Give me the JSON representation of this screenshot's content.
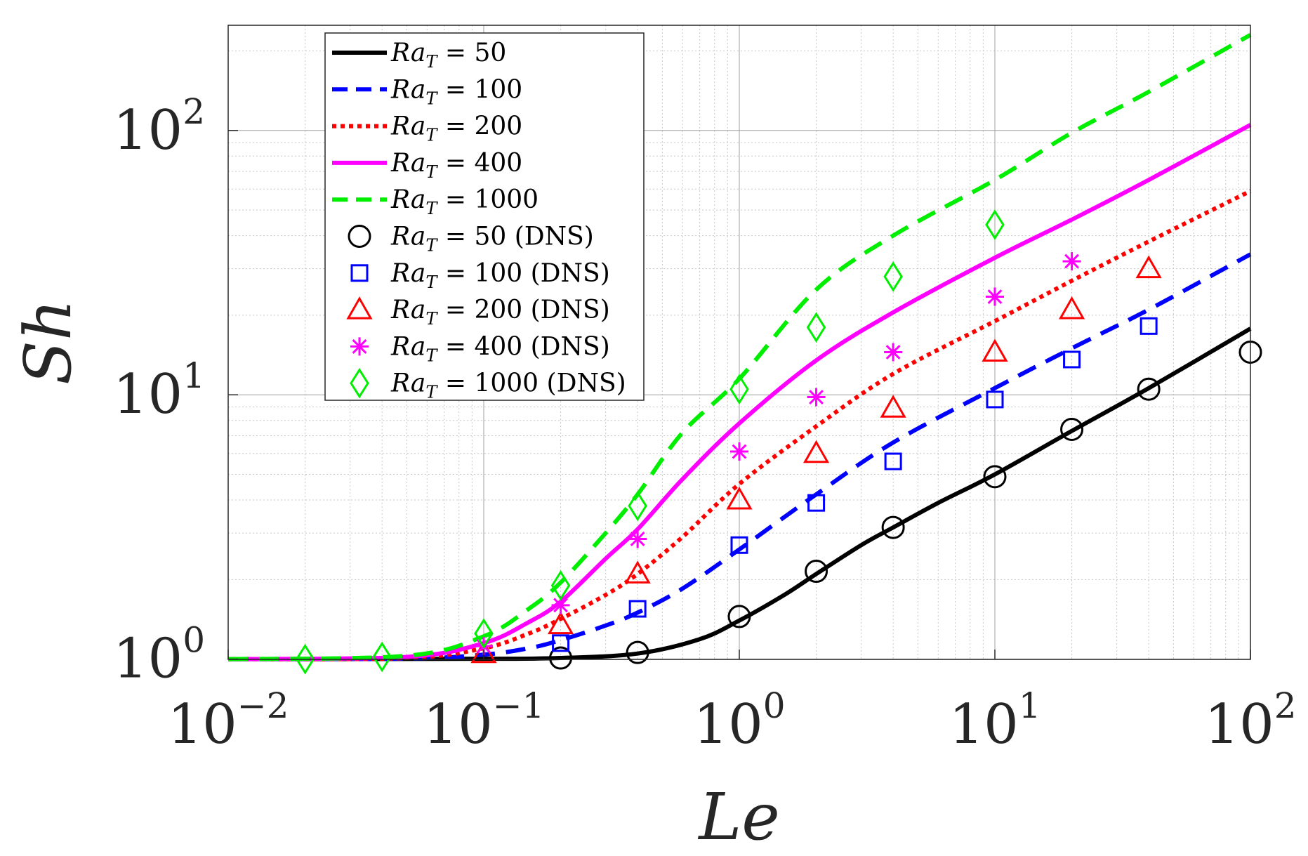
{
  "chart_data": {
    "type": "line",
    "title": "",
    "xlabel": "Le",
    "ylabel": "Sh",
    "xscale": "log",
    "yscale": "log",
    "xlim": [
      0.01,
      100
    ],
    "ylim": [
      0.998,
      250
    ],
    "grid": true,
    "legend_location": "top-left",
    "x_ticks": [
      {
        "value": 0.01,
        "base": "10",
        "exp": "−2"
      },
      {
        "value": 0.1,
        "base": "10",
        "exp": "−1"
      },
      {
        "value": 1,
        "base": "10",
        "exp": "0"
      },
      {
        "value": 10,
        "base": "10",
        "exp": "1"
      },
      {
        "value": 100,
        "base": "10",
        "exp": "2"
      }
    ],
    "y_ticks": [
      {
        "value": 1,
        "base": "10",
        "exp": "0"
      },
      {
        "value": 10,
        "base": "10",
        "exp": "1"
      },
      {
        "value": 100,
        "base": "10",
        "exp": "2"
      }
    ],
    "lines": [
      {
        "name": "Ra_T = 50",
        "label_var": "Ra",
        "label_sub": "T",
        "label_rest": " = 50",
        "color": "#000000",
        "style": "solid",
        "x": [
          0.01,
          0.1,
          0.2,
          0.4,
          0.7,
          1,
          1.5,
          2,
          3,
          4,
          6,
          10,
          20,
          40,
          100
        ],
        "y": [
          1.0,
          1.003,
          1.01,
          1.05,
          1.19,
          1.4,
          1.75,
          2.1,
          2.7,
          3.15,
          3.9,
          5.0,
          7.3,
          10.6,
          17.8
        ]
      },
      {
        "name": "Ra_T = 100",
        "label_var": "Ra",
        "label_sub": "T",
        "label_rest": " = 100",
        "color": "#0000ff",
        "style": "dashed",
        "x": [
          0.01,
          0.05,
          0.1,
          0.15,
          0.2,
          0.3,
          0.4,
          0.6,
          1,
          2,
          4,
          10,
          20,
          40,
          100
        ],
        "y": [
          1.0,
          1.005,
          1.04,
          1.1,
          1.18,
          1.34,
          1.5,
          1.85,
          2.6,
          4.2,
          6.6,
          10.6,
          15.0,
          21.0,
          34.0
        ]
      },
      {
        "name": "Ra_T = 200",
        "label_var": "Ra",
        "label_sub": "T",
        "label_rest": " = 200",
        "color": "#ff0000",
        "style": "dotted",
        "x": [
          0.01,
          0.05,
          0.1,
          0.15,
          0.2,
          0.3,
          0.4,
          0.6,
          1,
          2,
          4,
          10,
          20,
          40,
          100
        ],
        "y": [
          1.0,
          1.01,
          1.1,
          1.25,
          1.42,
          1.75,
          2.1,
          2.9,
          4.6,
          7.6,
          12.0,
          19.0,
          27.0,
          38.0,
          59.0
        ]
      },
      {
        "name": "Ra_T = 400",
        "label_var": "Ra",
        "label_sub": "T",
        "label_rest": " = 400",
        "color": "#ff00ff",
        "style": "solid",
        "x": [
          0.01,
          0.05,
          0.1,
          0.15,
          0.2,
          0.3,
          0.4,
          0.6,
          1,
          2,
          4,
          10,
          20,
          40,
          100
        ],
        "y": [
          1.0,
          1.02,
          1.15,
          1.38,
          1.65,
          2.4,
          3.1,
          4.8,
          7.8,
          13.5,
          20.5,
          33.0,
          46.0,
          65.0,
          105.0
        ]
      },
      {
        "name": "Ra_T = 1000",
        "label_var": "Ra",
        "label_sub": "T",
        "label_rest": " = 1000",
        "color": "#00ee00",
        "style": "dashed",
        "x": [
          0.01,
          0.05,
          0.1,
          0.15,
          0.2,
          0.3,
          0.4,
          0.6,
          1,
          2,
          4,
          10,
          20,
          40,
          100
        ],
        "y": [
          1.0,
          1.03,
          1.22,
          1.55,
          1.95,
          3.0,
          4.2,
          7.2,
          11.5,
          25.0,
          40.0,
          65.0,
          98.0,
          140.0,
          230.0
        ]
      }
    ],
    "markers": [
      {
        "name": "Ra_T = 50 (DNS)",
        "label_var": "Ra",
        "label_sub": "T",
        "label_rest": " = 50 (DNS)",
        "color": "#000000",
        "symbol": "circle",
        "x": [
          0.2,
          0.4,
          1,
          2,
          4,
          10,
          20,
          40,
          100
        ],
        "y": [
          1.01,
          1.06,
          1.45,
          2.15,
          3.15,
          4.9,
          7.4,
          10.5,
          14.5
        ]
      },
      {
        "name": "Ra_T = 100 (DNS)",
        "label_var": "Ra",
        "label_sub": "T",
        "label_rest": " = 100 (DNS)",
        "color": "#0000ff",
        "symbol": "square",
        "x": [
          0.2,
          0.4,
          1,
          2,
          4,
          10,
          20,
          40
        ],
        "y": [
          1.15,
          1.55,
          2.7,
          3.9,
          5.6,
          9.6,
          13.6,
          18.2
        ]
      },
      {
        "name": "Ra_T = 200 (DNS)",
        "label_var": "Ra",
        "label_sub": "T",
        "label_rest": " = 200 (DNS)",
        "color": "#ff0000",
        "symbol": "triangle",
        "x": [
          0.1,
          0.2,
          0.4,
          1,
          2,
          4,
          10,
          20,
          40
        ],
        "y": [
          1.05,
          1.35,
          2.1,
          4.0,
          6.0,
          8.9,
          14.5,
          21.0,
          30.0
        ]
      },
      {
        "name": "Ra_T = 400 (DNS)",
        "label_var": "Ra",
        "label_sub": "T",
        "label_rest": " = 400 (DNS)",
        "color": "#ff00ff",
        "symbol": "asterisk",
        "x": [
          0.1,
          0.2,
          0.4,
          1,
          2,
          4,
          10,
          20
        ],
        "y": [
          1.12,
          1.6,
          2.85,
          6.1,
          9.8,
          14.5,
          23.5,
          32.0
        ]
      },
      {
        "name": "Ra_T = 1000 (DNS)",
        "label_var": "Ra",
        "label_sub": "T",
        "label_rest": " = 1000 (DNS)",
        "color": "#00ee00",
        "symbol": "diamond",
        "x": [
          0.02,
          0.04,
          0.1,
          0.2,
          0.4,
          1,
          2,
          4,
          10
        ],
        "y": [
          1.0,
          1.02,
          1.25,
          1.9,
          3.8,
          10.5,
          18.0,
          28.0,
          44.0
        ]
      }
    ]
  }
}
